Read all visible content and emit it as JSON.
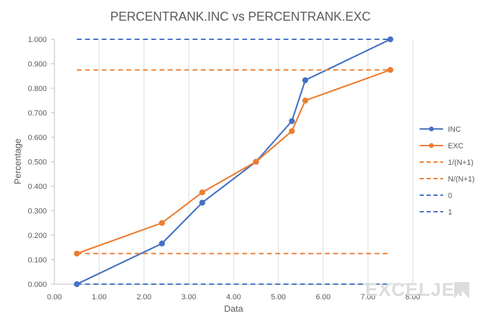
{
  "chart_data": {
    "type": "scatter",
    "title": "PERCENTRANK.INC vs PERCENTRANK.EXC",
    "xlabel": "Data",
    "ylabel": "Percentage",
    "xlim": [
      0,
      8
    ],
    "ylim": [
      0,
      1
    ],
    "x_ticks": [
      "0.00",
      "1.00",
      "2.00",
      "3.00",
      "4.00",
      "5.00",
      "6.00",
      "7.00",
      "8.00"
    ],
    "y_ticks": [
      "0.000",
      "0.100",
      "0.200",
      "0.300",
      "0.400",
      "0.500",
      "0.600",
      "0.700",
      "0.800",
      "0.900",
      "1.000"
    ],
    "grid": "vertical",
    "legend_position": "right",
    "series": [
      {
        "name": "INC",
        "color": "#4472C4",
        "style": "solid-markers",
        "x": [
          0.5,
          2.4,
          3.3,
          4.5,
          5.3,
          5.6,
          7.5
        ],
        "y": [
          0.0,
          0.166,
          0.333,
          0.5,
          0.666,
          0.833,
          1.0
        ]
      },
      {
        "name": "EXC",
        "color": "#ED7D31",
        "style": "solid-markers",
        "x": [
          0.5,
          2.4,
          3.3,
          4.5,
          5.3,
          5.6,
          7.5
        ],
        "y": [
          0.125,
          0.25,
          0.375,
          0.5,
          0.625,
          0.75,
          0.875
        ]
      },
      {
        "name": "1/(N+1)",
        "color": "#ED7D31",
        "style": "dashed",
        "x": [
          0.5,
          7.5
        ],
        "y": [
          0.125,
          0.125
        ]
      },
      {
        "name": "N/(N+1)",
        "color": "#ED7D31",
        "style": "dashed",
        "x": [
          0.5,
          7.5
        ],
        "y": [
          0.875,
          0.875
        ]
      },
      {
        "name": "0",
        "color": "#4472C4",
        "style": "dashed",
        "x": [
          0.5,
          7.5
        ],
        "y": [
          0,
          0
        ]
      },
      {
        "name": "1",
        "color": "#4472C4",
        "style": "dashed",
        "x": [
          0.5,
          7.5
        ],
        "y": [
          1,
          1
        ]
      }
    ]
  },
  "watermark": "EXCELJET"
}
